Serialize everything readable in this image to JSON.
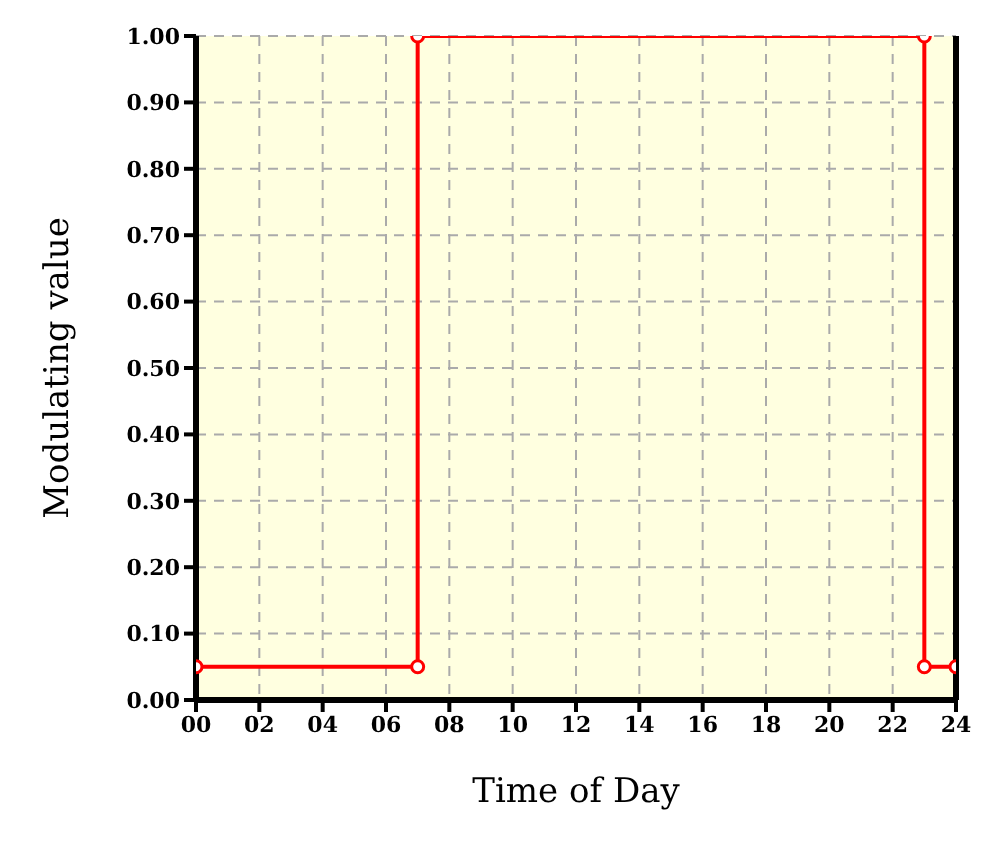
{
  "chart_data": {
    "type": "line",
    "xlabel": "Time of Day",
    "ylabel": "Modulating value",
    "x": [
      0,
      7,
      7,
      23,
      23,
      24
    ],
    "series": [
      {
        "color": "#ff0000",
        "values": [
          0.05,
          0.05,
          1,
          1,
          0.05,
          0.05
        ]
      }
    ],
    "xlim": [
      0,
      24
    ],
    "xticks": [
      {
        "value": 0,
        "label": "00"
      },
      {
        "value": 2,
        "label": "02"
      },
      {
        "value": 4,
        "label": "04"
      },
      {
        "value": 6,
        "label": "06"
      },
      {
        "value": 8,
        "label": "08"
      },
      {
        "value": 10,
        "label": "10"
      },
      {
        "value": 12,
        "label": "12"
      },
      {
        "value": 14,
        "label": "14"
      },
      {
        "value": 16,
        "label": "16"
      },
      {
        "value": 18,
        "label": "18"
      },
      {
        "value": 20,
        "label": "20"
      },
      {
        "value": 22,
        "label": "22"
      },
      {
        "value": 24,
        "label": "24"
      }
    ],
    "ylim": [
      0,
      1
    ],
    "yticks": [
      {
        "value": 0,
        "label": "0.00"
      },
      {
        "value": 0.1,
        "label": "0.10"
      },
      {
        "value": 0.2,
        "label": "0.20"
      },
      {
        "value": 0.3,
        "label": "0.30"
      },
      {
        "value": 0.4,
        "label": "0.40"
      },
      {
        "value": 0.5,
        "label": "0.50"
      },
      {
        "value": 0.6,
        "label": "0.60"
      },
      {
        "value": 0.7,
        "label": "0.70"
      },
      {
        "value": 0.8,
        "label": "0.80"
      },
      {
        "value": 0.9,
        "label": "0.90"
      },
      {
        "value": 1,
        "label": "1.00"
      }
    ],
    "grid": true,
    "marker": "circle",
    "line_style": "solid",
    "legend": false
  }
}
